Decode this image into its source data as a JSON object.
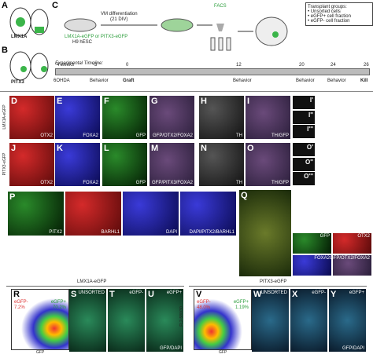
{
  "panel_a": {
    "letter": "A",
    "label": "LMX1A"
  },
  "panel_b": {
    "letter": "B",
    "label": "PITX3"
  },
  "panel_c": {
    "letter": "C",
    "cell_line": "LMX1A-eGFP or PITX3-eGFP",
    "cell_source": "H9 hESC",
    "differentiation": "VM differentiation",
    "duration": "(21 DIV)",
    "facs": "FACS",
    "groups_title": "Transplant groups:",
    "groups": [
      "• Unsorted cells",
      "• eGFP+ cell fraction",
      "• eGFP- cell fraction"
    ],
    "timeline_title": "Experimental Timeline:",
    "timeline": [
      {
        "time": "4 weeks",
        "event": "6OHDA"
      },
      {
        "time": "-3",
        "event": "Behavior"
      },
      {
        "time": "0",
        "event": "Graft"
      },
      {
        "time": "12",
        "event": "Behavior"
      },
      {
        "time": "20",
        "event": "Behavior"
      },
      {
        "time": "24",
        "event": "Behavior"
      },
      {
        "time": "26",
        "event": "Kill"
      }
    ]
  },
  "rows": [
    {
      "label": "LMX1A-eGFP",
      "panels": [
        {
          "letter": "D",
          "stain": "OTX2"
        },
        {
          "letter": "E",
          "stain": "FOXA2"
        },
        {
          "letter": "F",
          "stain": "GFP"
        },
        {
          "letter": "G",
          "stain": "GFP/OTX2/FOXA2"
        },
        {
          "letter": "H",
          "stain": "TH"
        },
        {
          "letter": "I",
          "stain": "TH/GFP"
        }
      ],
      "insets": [
        "I'",
        "I''",
        "I'''"
      ]
    },
    {
      "label": "PITX3-eGFP",
      "panels": [
        {
          "letter": "J",
          "stain": "OTX2"
        },
        {
          "letter": "K",
          "stain": "FOXA2"
        },
        {
          "letter": "L",
          "stain": "GFP"
        },
        {
          "letter": "M",
          "stain": "GFP/PITX3/FOXA2"
        },
        {
          "letter": "N",
          "stain": "TH"
        },
        {
          "letter": "O",
          "stain": "TH/GFP"
        }
      ],
      "insets": [
        "O'",
        "O''",
        "O'''"
      ]
    }
  ],
  "panel_p": {
    "letter": "P",
    "stains": [
      "PITX2",
      "BARHL1",
      "DAPI",
      "DAPI/PITX2/BARHL1"
    ]
  },
  "panel_q": {
    "letter": "Q",
    "insets": [
      "GFP",
      "OTX2",
      "FOXA2",
      "GFP/OTX2/FOXA2"
    ]
  },
  "facs": [
    {
      "title": "LMX1A-eGFP",
      "letter": "R",
      "y_label": "FL2-580/30",
      "x_label": "GFP",
      "gates": [
        {
          "name": "eGFP-",
          "percent": "7.2%"
        },
        {
          "name": "eGFP+",
          "percent": "70.2%"
        }
      ],
      "images": [
        {
          "letter": "S",
          "label": "UNSORTED"
        },
        {
          "letter": "T",
          "label": "eGFP-"
        },
        {
          "letter": "U",
          "label": "eGFP+",
          "stain": "GFP/DAPI"
        }
      ]
    },
    {
      "title": "PITX3-eGFP",
      "letter": "V",
      "y_label": "FL2-580/30",
      "x_label": "GFP",
      "gates": [
        {
          "name": "eGFP-",
          "percent": "48.0%"
        },
        {
          "name": "eGFP+",
          "percent": "1.19%"
        }
      ],
      "images": [
        {
          "letter": "W",
          "label": "UNSORTED"
        },
        {
          "letter": "X",
          "label": "eGFP-"
        },
        {
          "letter": "Y",
          "label": "eGFP+",
          "stain": "GFP/DAPI"
        }
      ]
    }
  ]
}
